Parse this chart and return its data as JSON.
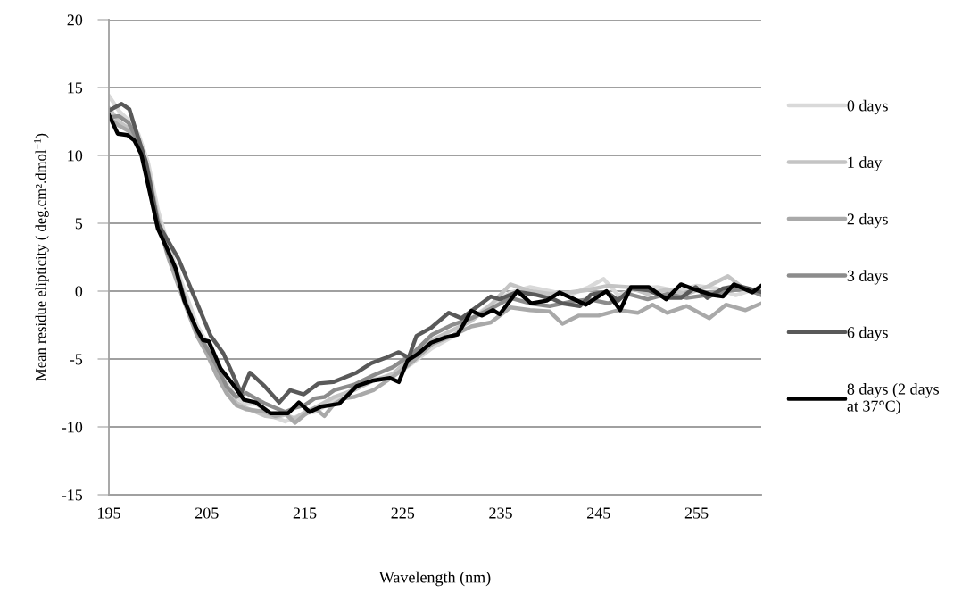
{
  "chart_data": {
    "type": "line",
    "xlabel": "Wavelength (nm)",
    "ylabel": "Mean residue elipticity ( deg.cm².dmol$^{−1}$)",
    "xlim": [
      195,
      261.6
    ],
    "xticks": [
      195,
      205,
      215,
      225,
      235,
      245,
      255
    ],
    "ylim": [
      -15,
      20
    ],
    "yticks": [
      -15,
      -10,
      -5,
      0,
      5,
      10,
      15,
      20
    ],
    "grid": "y",
    "legend": "right",
    "marker": "none",
    "line_style": "solid",
    "series": [
      {
        "name": "0 days",
        "color": "#d9d9d9",
        "x": [
          195,
          196,
          197,
          198,
          199,
          200,
          201,
          202,
          203,
          204,
          205,
          206,
          207,
          208,
          209,
          210,
          211,
          212,
          213,
          214,
          215,
          216,
          217,
          218,
          219,
          220,
          222,
          224,
          226,
          228,
          230,
          232,
          234,
          236,
          238,
          240,
          242,
          244,
          245.5,
          247,
          249,
          251,
          253,
          255,
          257,
          259,
          261.6
        ],
        "values": [
          14.4,
          13.3,
          12.6,
          11.6,
          9.5,
          6.0,
          3.5,
          1.5,
          -0.5,
          -2.5,
          -3.8,
          -5.3,
          -6.8,
          -7.8,
          -8.3,
          -8.3,
          -8.8,
          -9.3,
          -9.6,
          -9.3,
          -9.0,
          -8.9,
          -8.5,
          -8.0,
          -7.6,
          -7.2,
          -6.5,
          -6.3,
          -5.3,
          -4.2,
          -3.4,
          -2.0,
          -1.0,
          -0.1,
          0.3,
          0,
          -0.3,
          0.3,
          0.9,
          -0.3,
          0.2,
          0.3,
          0,
          0.4,
          0.2,
          -0.3,
          0.3
        ]
      },
      {
        "name": "1 day",
        "color": "#c4c4c4",
        "x": [
          195,
          196,
          197,
          198,
          199,
          200,
          201,
          202,
          203,
          204,
          205,
          206,
          207,
          208,
          209,
          210,
          211,
          212,
          213,
          214,
          215,
          216,
          217,
          218,
          220,
          222,
          224,
          226,
          228,
          230,
          232,
          234,
          236,
          238,
          240,
          242,
          244,
          246,
          248,
          250,
          252,
          254,
          256,
          258.2,
          260,
          261.6
        ],
        "values": [
          13.5,
          12.5,
          12.0,
          11.3,
          9.0,
          5.5,
          3.0,
          1.0,
          -1.0,
          -3.0,
          -4.3,
          -5.8,
          -7.2,
          -8.2,
          -8.6,
          -8.9,
          -9.2,
          -9.3,
          -9.1,
          -9.4,
          -8.9,
          -8.6,
          -8.2,
          -7.8,
          -7.3,
          -6.6,
          -6.1,
          -4.8,
          -3.6,
          -2.9,
          -2.2,
          -1.0,
          0.5,
          0.0,
          -0.2,
          -0.1,
          0.1,
          0.4,
          0.3,
          -0.2,
          0.1,
          -0.2,
          0.3,
          1.1,
          0.1,
          -0.2
        ]
      },
      {
        "name": "2 days",
        "color": "#a9a9a9",
        "x": [
          195,
          196,
          197,
          198,
          199,
          200,
          201,
          202,
          203,
          204,
          205,
          206,
          207,
          208,
          209,
          210,
          211,
          212,
          213,
          214,
          215,
          216,
          217,
          218,
          219,
          220,
          222,
          224,
          226,
          228,
          230,
          232,
          234,
          236,
          238,
          240,
          241.3,
          243,
          245,
          247,
          249,
          250.5,
          252,
          254,
          256.3,
          258,
          260,
          261.6
        ],
        "values": [
          12.8,
          12.2,
          11.8,
          11.2,
          8.8,
          5.3,
          2.6,
          0.6,
          -1.4,
          -3.3,
          -4.6,
          -6.2,
          -7.5,
          -8.4,
          -8.7,
          -8.8,
          -8.9,
          -9.2,
          -9.0,
          -9.7,
          -9.1,
          -8.6,
          -9.2,
          -8.3,
          -7.9,
          -7.8,
          -7.3,
          -6.3,
          -5.2,
          -3.9,
          -3.3,
          -2.6,
          -2.3,
          -1.2,
          -1.4,
          -1.5,
          -2.4,
          -1.8,
          -1.8,
          -1.4,
          -1.6,
          -1.0,
          -1.6,
          -1.1,
          -2.0,
          -1.0,
          -1.4,
          -0.9
        ]
      },
      {
        "name": "3 days",
        "color": "#8c8c8c",
        "x": [
          195,
          196,
          197,
          198,
          199,
          200,
          201,
          202,
          203,
          204,
          205,
          206,
          207,
          208,
          209,
          210,
          211,
          212,
          213,
          214,
          215,
          216,
          217,
          218,
          220,
          222,
          224,
          226,
          228,
          230,
          232,
          234,
          236,
          238,
          240,
          242,
          244,
          246,
          248,
          250,
          252,
          254,
          256,
          258,
          260,
          261.6
        ],
        "values": [
          12.8,
          12.9,
          12.4,
          11.0,
          8.5,
          5.0,
          2.8,
          1.2,
          -1.2,
          -3.0,
          -4.2,
          -5.5,
          -7.0,
          -7.8,
          -7.5,
          -7.9,
          -8.3,
          -8.6,
          -8.9,
          -8.6,
          -8.4,
          -7.9,
          -7.8,
          -7.3,
          -6.9,
          -6.2,
          -5.6,
          -4.6,
          -3.2,
          -2.5,
          -2.0,
          -1.3,
          -0.5,
          -0.9,
          -1.1,
          -0.8,
          -0.6,
          -0.9,
          -0.2,
          -0.6,
          -0.2,
          -0.5,
          -0.3,
          0,
          0.2,
          -0.3
        ]
      },
      {
        "name": "6 days",
        "color": "#595959",
        "x": [
          195,
          196.3,
          197.1,
          197.6,
          198.8,
          200,
          202.1,
          205.4,
          206.7,
          208.5,
          209.4,
          210.9,
          212.4,
          213.5,
          214.9,
          216.4,
          217.9,
          220.3,
          221.8,
          223.3,
          224.6,
          225.6,
          226.4,
          227.9,
          229.7,
          231,
          234,
          234.9,
          236.7,
          238.5,
          240.4,
          241.3,
          243.1,
          244.2,
          245.8,
          247,
          248.3,
          250.1,
          251.9,
          253.4,
          254.9,
          256.1,
          257.7,
          259.2,
          261.6
        ],
        "values": [
          13.3,
          13.8,
          13.4,
          12.2,
          9.5,
          5.0,
          2.4,
          -3.3,
          -4.6,
          -7.5,
          -6.0,
          -7.0,
          -8.2,
          -7.3,
          -7.6,
          -6.8,
          -6.7,
          -6.0,
          -5.3,
          -4.9,
          -4.5,
          -4.9,
          -3.3,
          -2.7,
          -1.6,
          -2.0,
          -0.4,
          -0.6,
          -0.05,
          -0.26,
          -0.6,
          -0.9,
          -1.1,
          -0.26,
          -0.05,
          -0.7,
          0.2,
          0.07,
          -0.5,
          -0.5,
          0.3,
          -0.5,
          0.2,
          0.4,
          -0.05
        ]
      },
      {
        "name": "8 days (2 days\nat 37°C)",
        "color": "#000000",
        "x": [
          195,
          195.9,
          196.9,
          197.6,
          198.3,
          199.2,
          200,
          200.9,
          201.8,
          202.7,
          203.9,
          204.6,
          205.2,
          206.4,
          207.6,
          208.8,
          210,
          211.5,
          213.3,
          214.4,
          215.5,
          216.7,
          218.5,
          220.3,
          221.9,
          223.7,
          224.6,
          225.5,
          226.4,
          227.9,
          229.4,
          230.6,
          232,
          233.1,
          234.2,
          234.9,
          236.7,
          238.1,
          239.7,
          241,
          242.8,
          243.7,
          245.8,
          247.2,
          248.3,
          250.1,
          251.9,
          253.4,
          254.9,
          256.7,
          257.7,
          258.8,
          260.7,
          261.6
        ],
        "values": [
          13.0,
          11.6,
          11.5,
          11.1,
          10.1,
          7.2,
          4.6,
          3.2,
          1.7,
          -0.7,
          -2.7,
          -3.6,
          -3.7,
          -5.7,
          -6.8,
          -8.0,
          -8.2,
          -9.0,
          -9.0,
          -8.2,
          -8.9,
          -8.5,
          -8.3,
          -7.0,
          -6.6,
          -6.4,
          -6.7,
          -5.1,
          -4.7,
          -3.8,
          -3.4,
          -3.2,
          -1.45,
          -1.8,
          -1.4,
          -1.7,
          0,
          -0.9,
          -0.7,
          -0.1,
          -0.7,
          -1.0,
          0,
          -1.4,
          0.3,
          0.3,
          -0.6,
          0.5,
          0.1,
          -0.3,
          -0.4,
          0.5,
          -0.1,
          0.4
        ]
      }
    ]
  }
}
